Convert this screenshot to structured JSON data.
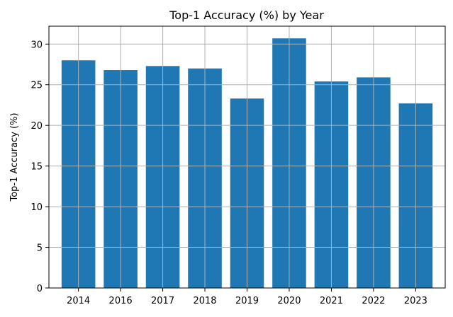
{
  "chart_data": {
    "type": "bar",
    "title": "Top-1 Accuracy (%) by Year",
    "xlabel": "",
    "ylabel": "Top-1 Accuracy (%)",
    "categories": [
      "2014",
      "2016",
      "2017",
      "2018",
      "2019",
      "2020",
      "2021",
      "2022",
      "2023"
    ],
    "values": [
      28.0,
      26.8,
      27.3,
      27.0,
      23.3,
      30.7,
      25.4,
      25.9,
      22.7
    ],
    "ylim": [
      0,
      32.2
    ],
    "yticks": [
      0,
      5,
      10,
      15,
      20,
      25,
      30
    ],
    "grid": true,
    "bar_color": "#1f77b4",
    "grid_color": "#b0b0b0"
  }
}
